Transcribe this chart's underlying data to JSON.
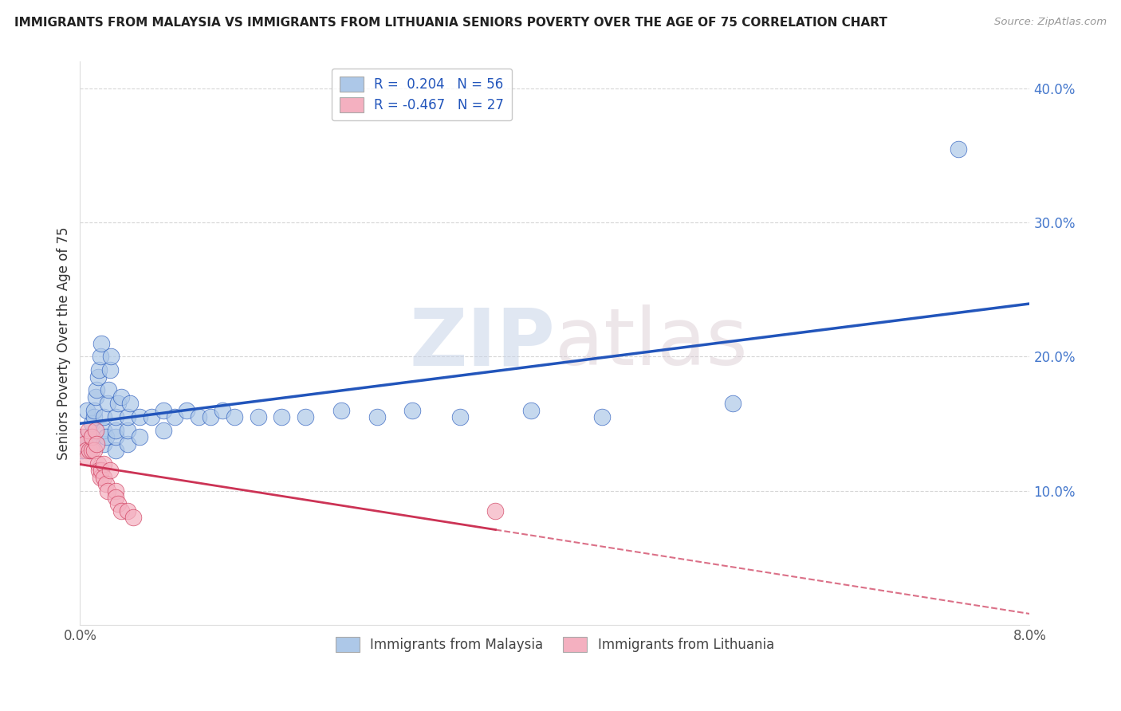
{
  "title": "IMMIGRANTS FROM MALAYSIA VS IMMIGRANTS FROM LITHUANIA SENIORS POVERTY OVER THE AGE OF 75 CORRELATION CHART",
  "source": "Source: ZipAtlas.com",
  "ylabel": "Seniors Poverty Over the Age of 75",
  "watermark": "ZIPatlas",
  "legend_r1": "R =  0.204",
  "legend_n1": "N = 56",
  "legend_r2": "R = -0.467",
  "legend_n2": "N = 27",
  "label1": "Immigrants from Malaysia",
  "label2": "Immigrants from Lithuania",
  "color1": "#adc8e8",
  "color2": "#f4b0c0",
  "line_color1": "#2255bb",
  "line_color2": "#cc3355",
  "xlim": [
    0.0,
    0.08
  ],
  "ylim": [
    0.0,
    0.42
  ],
  "malaysia_x": [
    0.0002,
    0.0003,
    0.0005,
    0.0006,
    0.0008,
    0.001,
    0.001,
    0.001,
    0.0012,
    0.0012,
    0.0013,
    0.0014,
    0.0015,
    0.0016,
    0.0017,
    0.0018,
    0.002,
    0.002,
    0.002,
    0.0022,
    0.0023,
    0.0024,
    0.0025,
    0.0026,
    0.003,
    0.003,
    0.003,
    0.003,
    0.0032,
    0.0035,
    0.004,
    0.004,
    0.004,
    0.0042,
    0.005,
    0.005,
    0.006,
    0.007,
    0.007,
    0.008,
    0.009,
    0.01,
    0.011,
    0.012,
    0.013,
    0.015,
    0.017,
    0.019,
    0.022,
    0.025,
    0.028,
    0.032,
    0.038,
    0.044,
    0.055,
    0.074
  ],
  "malaysia_y": [
    0.13,
    0.135,
    0.14,
    0.16,
    0.13,
    0.135,
    0.14,
    0.15,
    0.155,
    0.16,
    0.17,
    0.175,
    0.185,
    0.19,
    0.2,
    0.21,
    0.135,
    0.145,
    0.155,
    0.14,
    0.165,
    0.175,
    0.19,
    0.2,
    0.13,
    0.14,
    0.145,
    0.155,
    0.165,
    0.17,
    0.135,
    0.145,
    0.155,
    0.165,
    0.14,
    0.155,
    0.155,
    0.145,
    0.16,
    0.155,
    0.16,
    0.155,
    0.155,
    0.16,
    0.155,
    0.155,
    0.155,
    0.155,
    0.16,
    0.155,
    0.16,
    0.155,
    0.16,
    0.155,
    0.165,
    0.355
  ],
  "lithuania_x": [
    0.0002,
    0.0004,
    0.0005,
    0.0006,
    0.0007,
    0.0008,
    0.001,
    0.001,
    0.0012,
    0.0013,
    0.0014,
    0.0015,
    0.0016,
    0.0017,
    0.0018,
    0.002,
    0.002,
    0.0022,
    0.0023,
    0.0025,
    0.003,
    0.003,
    0.0032,
    0.0035,
    0.004,
    0.0045,
    0.035
  ],
  "lithuania_y": [
    0.14,
    0.135,
    0.13,
    0.125,
    0.145,
    0.13,
    0.13,
    0.14,
    0.13,
    0.145,
    0.135,
    0.12,
    0.115,
    0.11,
    0.115,
    0.12,
    0.11,
    0.105,
    0.1,
    0.115,
    0.1,
    0.095,
    0.09,
    0.085,
    0.085,
    0.08,
    0.085
  ]
}
